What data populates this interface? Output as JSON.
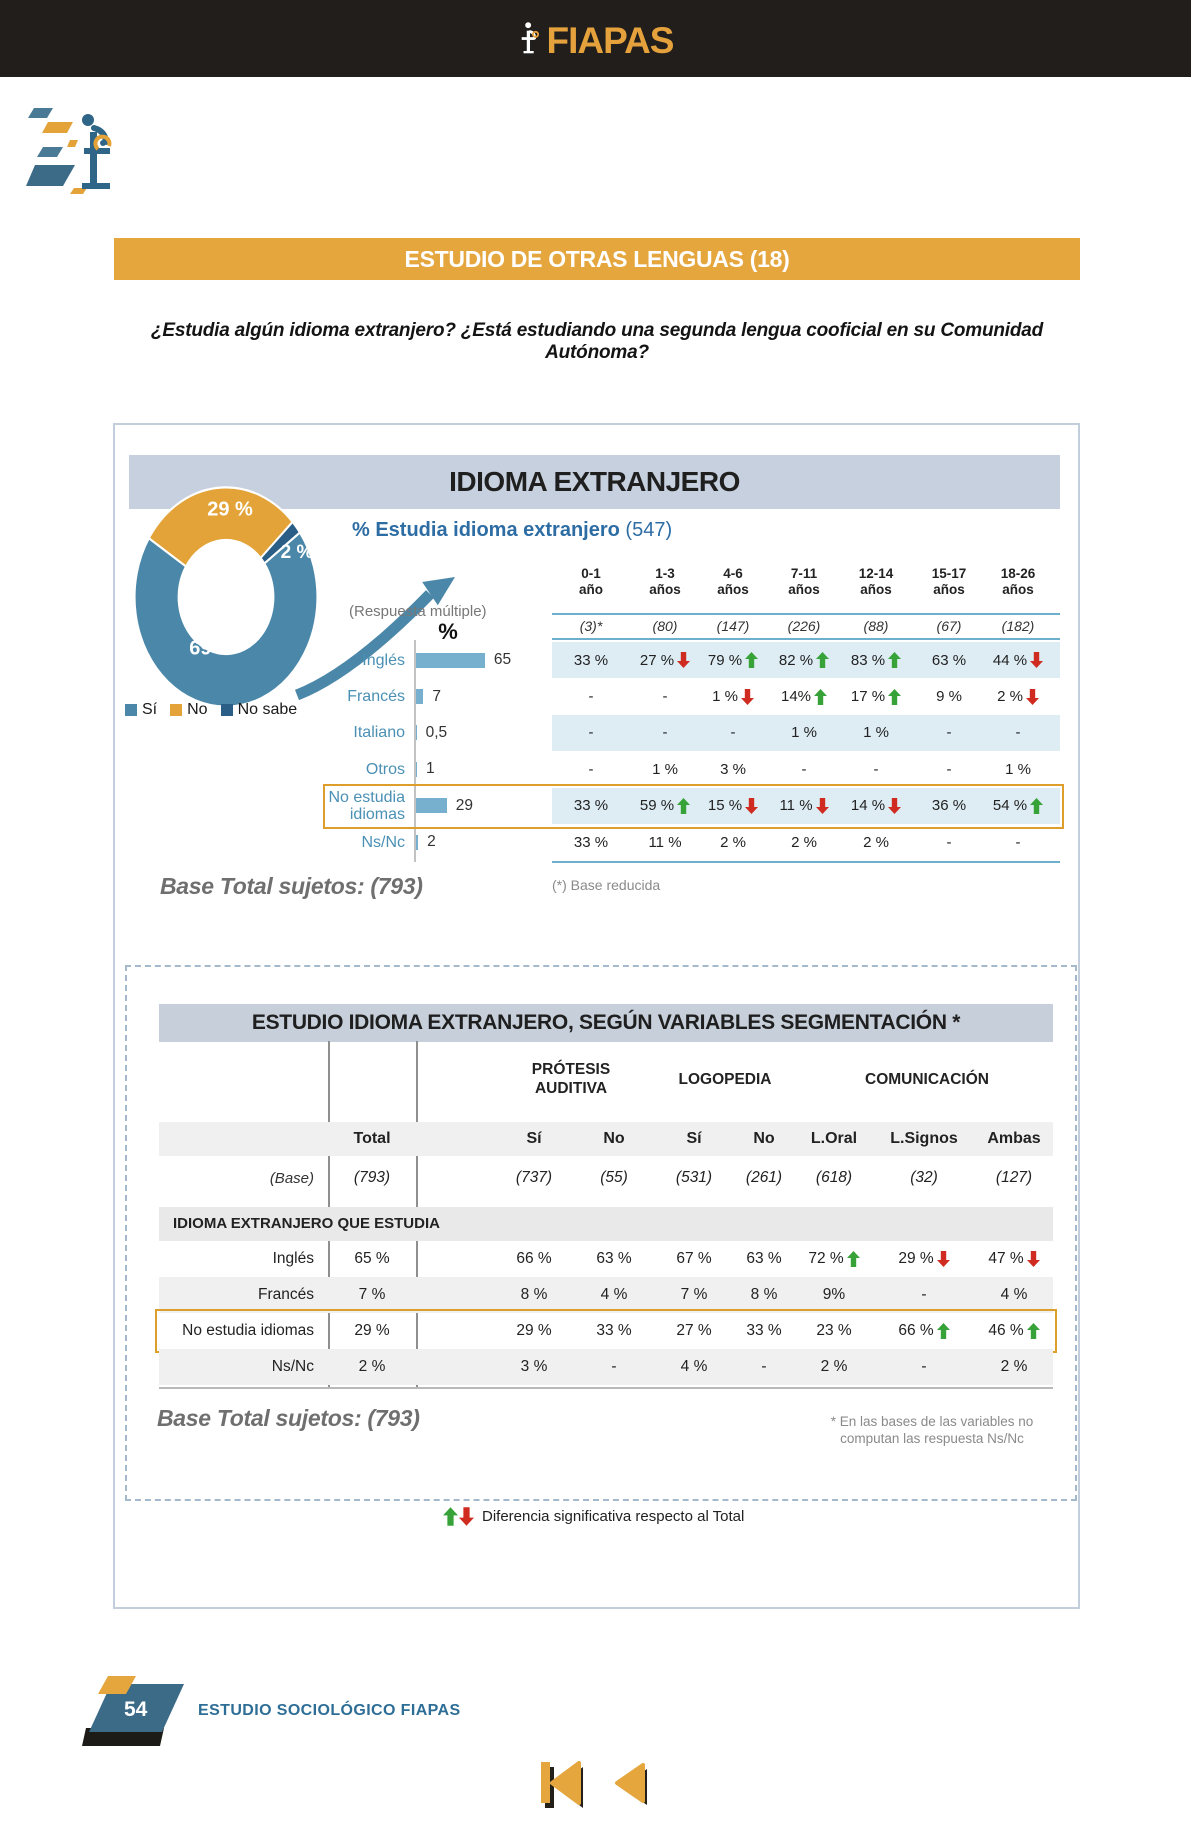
{
  "topbar": {
    "brand": "FIAPAS"
  },
  "banner": {
    "title": "ESTUDIO DE OTRAS LENGUAS (18)"
  },
  "question": "¿Estudia algún idioma extranjero? ¿Está estudiando una segunda lengua cooficial en su Comunidad Autónoma?",
  "panel": {
    "title": "IDIOMA EXTRANJERO",
    "callout_title": "% Estudia idioma extranjero",
    "callout_count": "(547)",
    "response_note": "(Respuesta múltiple)",
    "axis_label": "%",
    "footnote": "(*) Base reducida",
    "base_total": "Base Total sujetos: (793)",
    "sig_legend": "Diferencia significativa respecto al Total"
  },
  "donut": {
    "legend": [
      {
        "label": "Sí",
        "color": "#4b87a9"
      },
      {
        "label": "No",
        "color": "#e3a338"
      },
      {
        "label": "No sabe",
        "color": "#2b5e86"
      }
    ],
    "slices": [
      {
        "label": "Sí",
        "value": 69,
        "text": "69 %",
        "color": "#4b87a9"
      },
      {
        "label": "No",
        "value": 29,
        "text": "29 %",
        "color": "#e3a338"
      },
      {
        "label": "No sabe",
        "value": 2,
        "text": "2 %",
        "color": "#2b5e86"
      }
    ]
  },
  "age_table": {
    "columns": [
      [
        "0-1",
        "año"
      ],
      [
        "1-3",
        "años"
      ],
      [
        "4-6",
        "años"
      ],
      [
        "7-11",
        "años"
      ],
      [
        "12-14",
        "años"
      ],
      [
        "15-17",
        "años"
      ],
      [
        "18-26",
        "años"
      ]
    ],
    "bases": [
      "(3)*",
      "(80)",
      "(147)",
      "(226)",
      "(88)",
      "(67)",
      "(182)"
    ],
    "rows": [
      {
        "label_lines": [
          "Inglés"
        ],
        "bar": 65,
        "bar_text": "65",
        "striped": true,
        "cells": [
          {
            "t": "33 %"
          },
          {
            "t": "27 %",
            "d": "down"
          },
          {
            "t": "79 %",
            "d": "up"
          },
          {
            "t": "82 %",
            "d": "up"
          },
          {
            "t": "83 %",
            "d": "up"
          },
          {
            "t": "63 %"
          },
          {
            "t": "44 %",
            "d": "down"
          }
        ]
      },
      {
        "label_lines": [
          "Francés"
        ],
        "bar": 7,
        "bar_text": "7",
        "striped": false,
        "cells": [
          {
            "t": "-"
          },
          {
            "t": "-"
          },
          {
            "t": "1 %",
            "d": "down"
          },
          {
            "t": "14%",
            "d": "up"
          },
          {
            "t": "17 %",
            "d": "up"
          },
          {
            "t": "9 %"
          },
          {
            "t": "2 %",
            "d": "down"
          }
        ]
      },
      {
        "label_lines": [
          "Italiano"
        ],
        "bar": 0.5,
        "bar_text": "0,5",
        "striped": true,
        "cells": [
          {
            "t": "-"
          },
          {
            "t": "-"
          },
          {
            "t": "-"
          },
          {
            "t": "1 %"
          },
          {
            "t": "1 %"
          },
          {
            "t": "-"
          },
          {
            "t": "-"
          }
        ]
      },
      {
        "label_lines": [
          "Otros"
        ],
        "bar": 1,
        "bar_text": "1",
        "striped": false,
        "cells": [
          {
            "t": "-"
          },
          {
            "t": "1 %"
          },
          {
            "t": "3 %"
          },
          {
            "t": "-"
          },
          {
            "t": "-"
          },
          {
            "t": "-"
          },
          {
            "t": "1 %"
          }
        ]
      },
      {
        "label_lines": [
          "No estudia",
          "idiomas"
        ],
        "bar": 29,
        "bar_text": "29",
        "striped": true,
        "highlight": true,
        "cells": [
          {
            "t": "33 %"
          },
          {
            "t": "59 %",
            "d": "up"
          },
          {
            "t": "15 %",
            "d": "down"
          },
          {
            "t": "11 %",
            "d": "down"
          },
          {
            "t": "14 %",
            "d": "down"
          },
          {
            "t": "36 %"
          },
          {
            "t": "54 %",
            "d": "up"
          }
        ]
      },
      {
        "label_lines": [
          "Ns/Nc"
        ],
        "bar": 2,
        "bar_text": "2",
        "striped": false,
        "cells": [
          {
            "t": "33 %"
          },
          {
            "t": "11 %"
          },
          {
            "t": "2 %"
          },
          {
            "t": "2 %"
          },
          {
            "t": "2 %"
          },
          {
            "t": "-"
          },
          {
            "t": "-"
          }
        ]
      }
    ]
  },
  "seg_table": {
    "title": "ESTUDIO IDIOMA EXTRANJERO, SEGÚN VARIABLES SEGMENTACIÓN *",
    "groups": [
      [
        "PRÓTESIS",
        "AUDITIVA"
      ],
      [
        "LOGOPEDIA"
      ],
      [
        "COMUNICACIÓN"
      ]
    ],
    "col_headers": [
      "Total",
      "Sí",
      "No",
      "Sí",
      "No",
      "L.Oral",
      "L.Signos",
      "Ambas"
    ],
    "base_label": "(Base)",
    "bases": [
      "(793)",
      "(737)",
      "(55)",
      "(531)",
      "(261)",
      "(618)",
      "(32)",
      "(127)"
    ],
    "section": "IDIOMA EXTRANJERO QUE ESTUDIA",
    "rows": [
      {
        "label": "Inglés",
        "shaded": false,
        "cells": [
          {
            "t": "65 %"
          },
          {
            "t": "66 %"
          },
          {
            "t": "63 %"
          },
          {
            "t": "67 %"
          },
          {
            "t": "63 %"
          },
          {
            "t": "72 %",
            "d": "up"
          },
          {
            "t": "29 %",
            "d": "down"
          },
          {
            "t": "47 %",
            "d": "down"
          }
        ]
      },
      {
        "label": "Francés",
        "shaded": true,
        "cells": [
          {
            "t": "7 %"
          },
          {
            "t": "8 %"
          },
          {
            "t": "4 %"
          },
          {
            "t": "7 %"
          },
          {
            "t": "8 %"
          },
          {
            "t": "9%"
          },
          {
            "t": "-"
          },
          {
            "t": "4 %"
          }
        ]
      },
      {
        "label": "No estudia idiomas",
        "shaded": false,
        "highlight": true,
        "cells": [
          {
            "t": "29 %"
          },
          {
            "t": "29 %"
          },
          {
            "t": "33 %"
          },
          {
            "t": "27 %"
          },
          {
            "t": "33 %"
          },
          {
            "t": "23 %"
          },
          {
            "t": "66 %",
            "d": "up"
          },
          {
            "t": "46 %",
            "d": "up"
          }
        ]
      },
      {
        "label": "Ns/Nc",
        "shaded": true,
        "cells": [
          {
            "t": "2 %"
          },
          {
            "t": "3 %"
          },
          {
            "t": "-"
          },
          {
            "t": "4 %"
          },
          {
            "t": "-"
          },
          {
            "t": "2 %"
          },
          {
            "t": "-"
          },
          {
            "t": "2 %"
          }
        ]
      }
    ],
    "note_lines": [
      "* En las bases de las variables no",
      "computan las respuesta Ns/Nc"
    ],
    "base_total": "Base Total sujetos: (793)"
  },
  "footer": {
    "page": "54",
    "label": "ESTUDIO SOCIOLÓGICO FIAPAS"
  },
  "colors": {
    "up": "#36a237",
    "down": "#cf2b20",
    "accent_orange": "#e5a63e",
    "steel_blue": "#4b87a9",
    "highlight": "#dd9e2c"
  },
  "chart_data": [
    {
      "type": "pie",
      "title": "Idioma extranjero",
      "labels": [
        "Sí",
        "No",
        "No sabe"
      ],
      "values": [
        69,
        29,
        2
      ],
      "legend_position": "bottom-left"
    },
    {
      "type": "bar",
      "title": "% Estudia idioma extranjero (547)",
      "categories": [
        "Inglés",
        "Francés",
        "Italiano",
        "Otros",
        "No estudia idiomas",
        "Ns/Nc"
      ],
      "values": [
        65,
        7,
        0.5,
        1,
        29,
        2
      ],
      "xlabel": "%"
    }
  ]
}
